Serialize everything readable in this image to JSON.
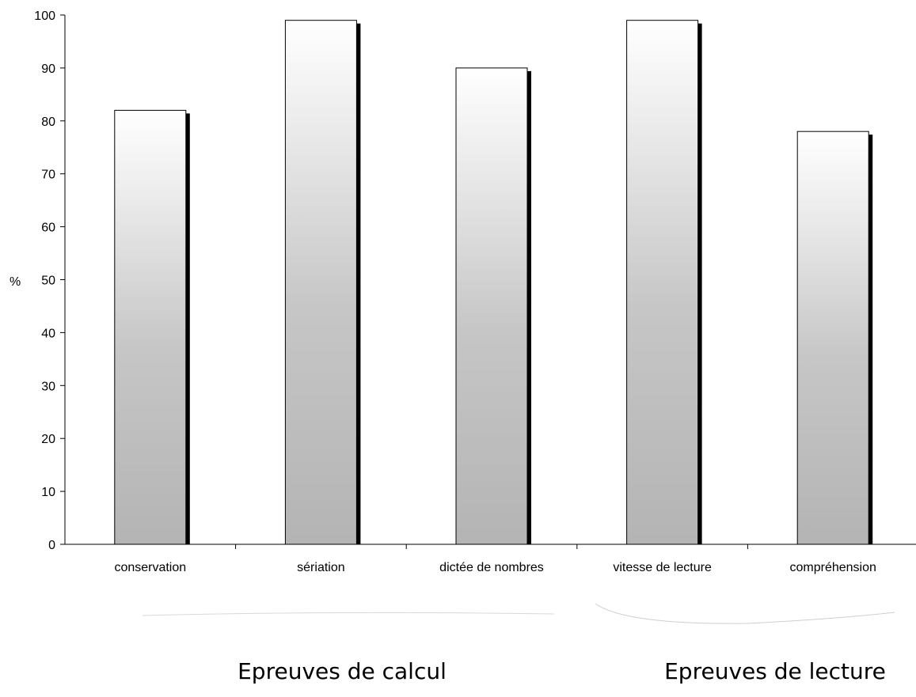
{
  "chart_data": {
    "type": "bar",
    "categories": [
      "conservation",
      "sériation",
      "dictée de nombres",
      "vitesse de lecture",
      "compréhension"
    ],
    "values": [
      82,
      99,
      90,
      99,
      78
    ],
    "title": "",
    "xlabel": "",
    "ylabel": "%",
    "ylim": [
      0,
      100
    ],
    "yticks": [
      0,
      10,
      20,
      30,
      40,
      50,
      60,
      70,
      80,
      90,
      100
    ],
    "grid": false,
    "groups": [
      {
        "label": "Epreuves de calcul",
        "categories": [
          "conservation",
          "sériation",
          "dictée de nombres"
        ]
      },
      {
        "label": "Epreuves de lecture",
        "categories": [
          "vitesse de lecture",
          "compréhension"
        ]
      }
    ]
  }
}
